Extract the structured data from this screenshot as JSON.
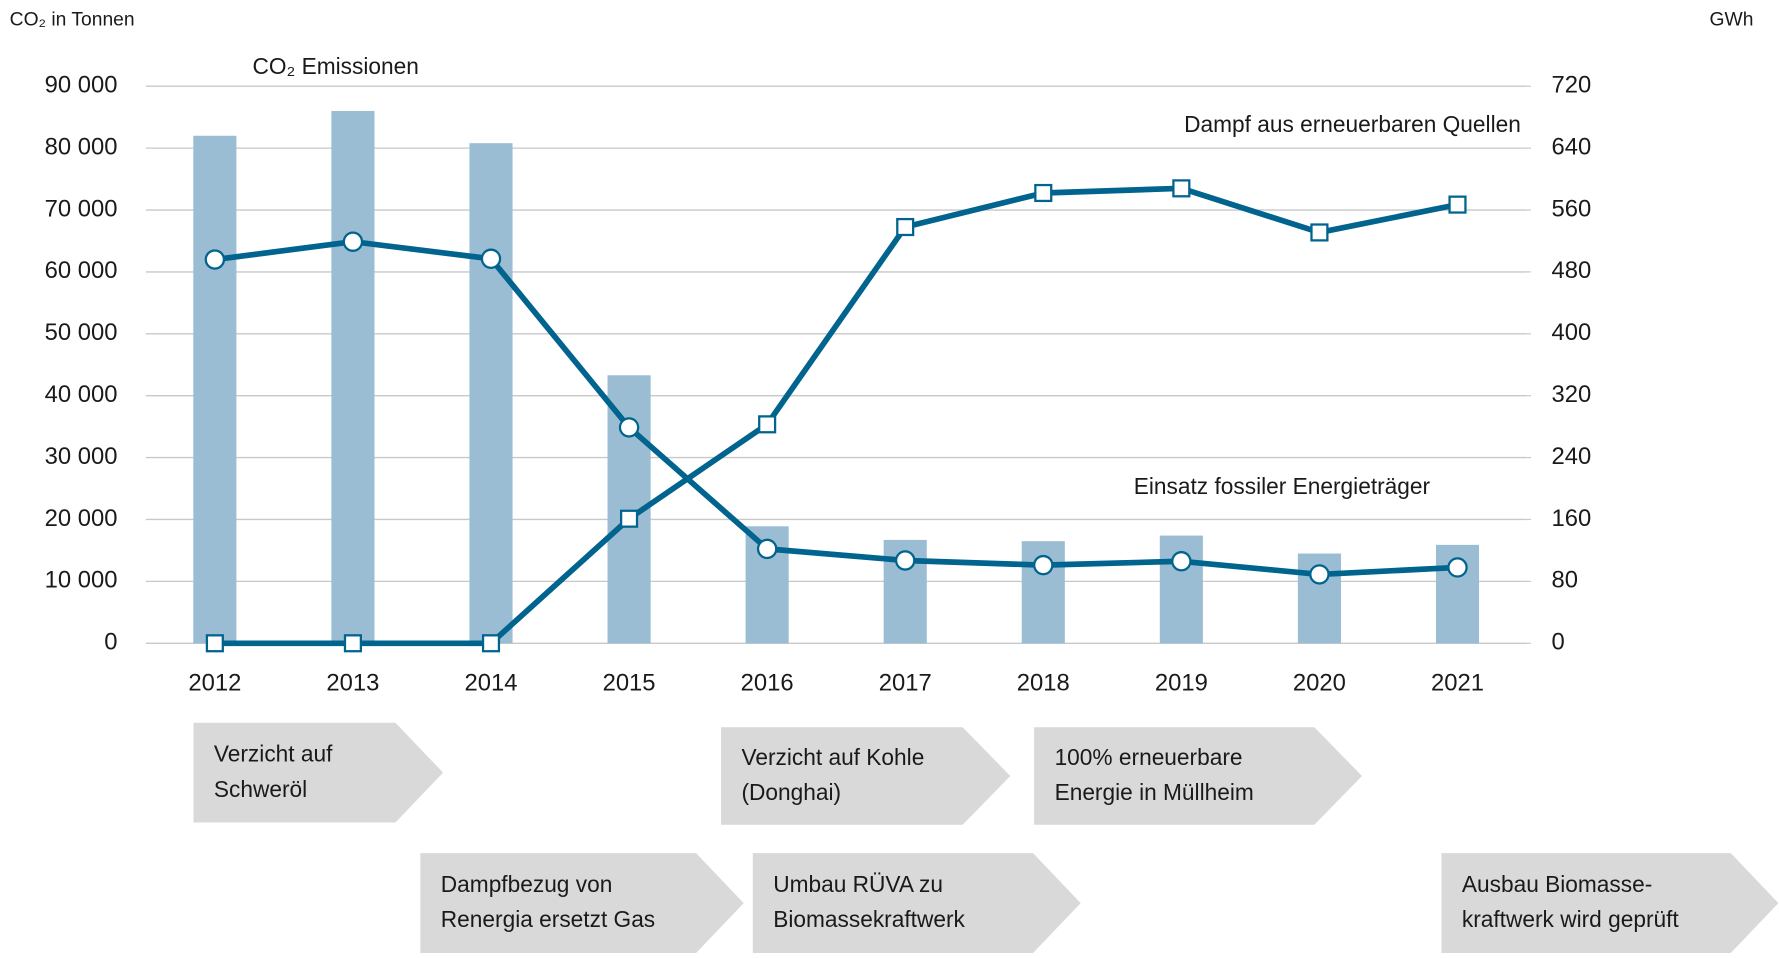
{
  "chart_data": {
    "type": "bar-line",
    "y_label": "CO₂ in Tonnen",
    "y2_label": "GWh",
    "categories": [
      "2012",
      "2013",
      "2014",
      "2015",
      "2016",
      "2017",
      "2018",
      "2019",
      "2020",
      "2021"
    ],
    "series": [
      {
        "name": "CO₂ Emissionen",
        "type": "bar",
        "color": "#9bbdd4",
        "values": [
          82000,
          86000,
          80800,
          43300,
          18900,
          16700,
          16500,
          17400,
          14500,
          15900
        ]
      },
      {
        "name": "Einsatz fossiler Energieträger",
        "type": "line",
        "marker": "circle",
        "axis": "y2",
        "color": "#00648f",
        "values": [
          496,
          519,
          497,
          279,
          122,
          107,
          101,
          106,
          89,
          98
        ]
      },
      {
        "name": "Dampf aus erneuerbaren Quellen",
        "type": "line",
        "marker": "square",
        "axis": "y2",
        "color": "#00648f",
        "values": [
          0,
          0,
          0,
          161,
          283,
          538,
          582,
          588,
          531,
          567
        ]
      }
    ],
    "ylim": [
      0,
      90000
    ],
    "yticks": [
      0,
      {
        "value": 10000,
        "label": "10 000"
      },
      {
        "value": 20000,
        "label": "20 000"
      },
      {
        "value": 30000,
        "label": "30 000"
      },
      {
        "value": 40000,
        "label": "40 000"
      },
      {
        "value": 50000,
        "label": "50 000"
      },
      {
        "value": 60000,
        "label": "60 000"
      },
      {
        "value": 70000,
        "label": "70 000"
      },
      {
        "value": 80000,
        "label": "80 000"
      },
      {
        "value": 90000,
        "label": "90 000"
      }
    ],
    "y2lim": [
      0,
      720
    ],
    "y2ticks": [
      0,
      80,
      160,
      240,
      320,
      400,
      480,
      560,
      640,
      720
    ],
    "grid": true,
    "annotations": [
      {
        "lines": [
          "Verzicht auf",
          "Schweröl"
        ]
      },
      {
        "lines": [
          "Dampfbezug von",
          "Renergia ersetzt Gas"
        ]
      },
      {
        "lines": [
          "Verzicht auf Kohle",
          "(Donghai)"
        ]
      },
      {
        "lines": [
          "Umbau RÜVA zu",
          "Biomassekraftwerk"
        ]
      },
      {
        "lines": [
          "100% erneuerbare",
          "Energie in Müllheim"
        ]
      },
      {
        "lines": [
          "Ausbau Biomasse-",
          "kraftwerk wird geprüft"
        ]
      }
    ]
  }
}
